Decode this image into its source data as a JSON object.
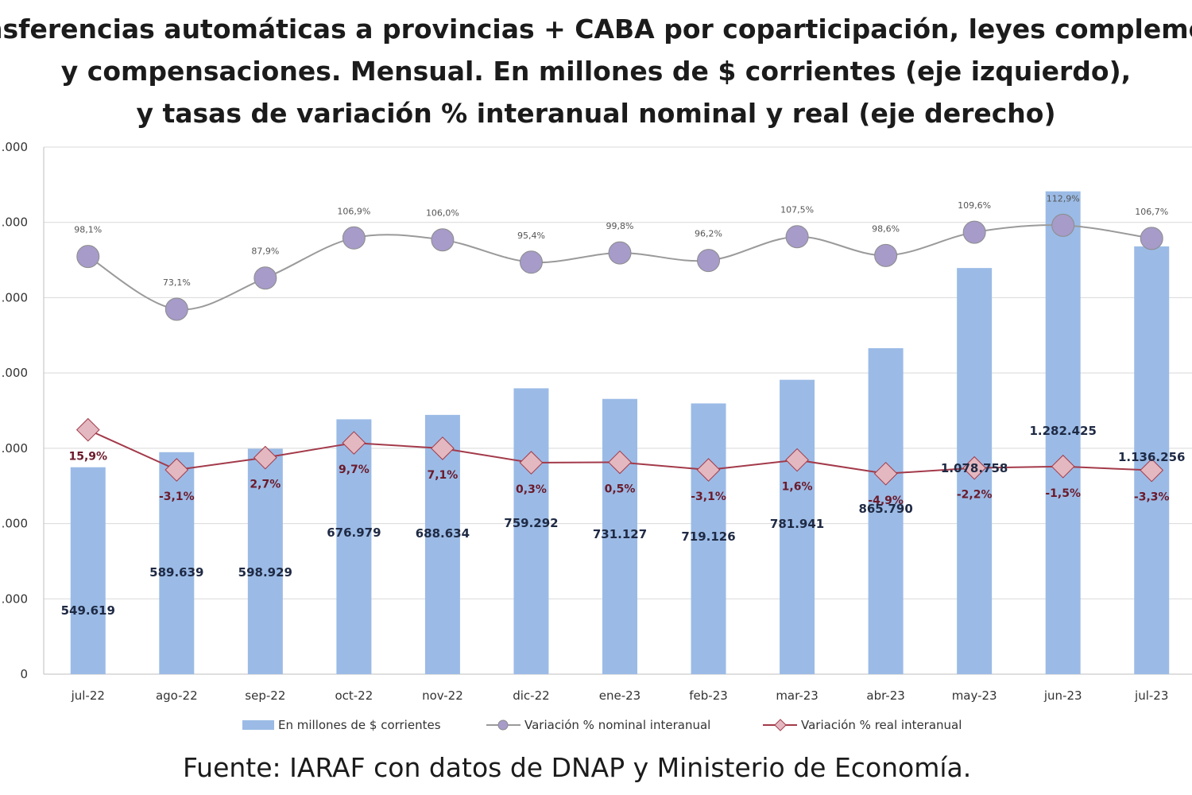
{
  "title_lines": [
    "nsferencias automáticas a provincias + CABA por coparticipación, leyes complement",
    "y compensaciones. Mensual. En millones de $ corrientes (eje izquierdo),",
    "y tasas de variación % interanual nominal y real (eje derecho)"
  ],
  "source": "Fuente: IARAF con datos de DNAP y Ministerio de Economía.",
  "colors": {
    "bar": "#9bbbe6",
    "nominal": "#a79bc9",
    "real": "#e3b8c0",
    "real_line": "#a33a4a",
    "grid": "#d9d9d9"
  },
  "chart_data": {
    "type": "bar",
    "categories": [
      "jul-22",
      "ago-22",
      "sep-22",
      "oct-22",
      "nov-22",
      "dic-22",
      "ene-23",
      "feb-23",
      "mar-23",
      "abr-23",
      "may-23",
      "jun-23",
      "jul-23"
    ],
    "left_axis": {
      "ticks": [
        0,
        200000,
        400000,
        600000,
        800000,
        1000000,
        1200000,
        1400000
      ],
      "tick_labels": [
        "0",
        ".000",
        ".000",
        ".000",
        ".000",
        ".000",
        ".000",
        ".000"
      ],
      "ylim": [
        0,
        1400000
      ]
    },
    "right_axis": {
      "ylim": [
        -100,
        150
      ]
    },
    "grid": true,
    "legend_position": "bottom",
    "series": [
      {
        "name": "En millones de $ corrientes",
        "kind": "bar",
        "axis": "left",
        "values": [
          549619,
          589639,
          598929,
          676979,
          688634,
          759292,
          731127,
          719126,
          781941,
          865790,
          1078758,
          1282425,
          1136256
        ],
        "labels": [
          "549.619",
          "589.639",
          "598.929",
          "676.979",
          "688.634",
          "759.292",
          "731.127",
          "719.126",
          "781.941",
          "865.790",
          "1.078.758",
          "1.282.425",
          "1.136.256"
        ]
      },
      {
        "name": "Variación % nominal interanual",
        "kind": "line",
        "axis": "right",
        "values": [
          98.1,
          73.1,
          87.9,
          106.9,
          106.0,
          95.4,
          99.8,
          96.2,
          107.5,
          98.6,
          109.6,
          112.9,
          106.7
        ],
        "labels": [
          "98,1%",
          "73,1%",
          "87,9%",
          "106,9%",
          "106,0%",
          "95,4%",
          "99,8%",
          "96,2%",
          "107,5%",
          "98,6%",
          "109,6%",
          "112,9%",
          "106,7%"
        ]
      },
      {
        "name": "Variación % real interanual",
        "kind": "line",
        "axis": "right",
        "values": [
          15.9,
          -3.1,
          2.7,
          9.7,
          7.1,
          0.3,
          0.5,
          -3.1,
          1.6,
          -4.9,
          -2.2,
          -1.5,
          -3.3
        ],
        "labels": [
          "15,9%",
          "-3,1%",
          "2,7%",
          "9,7%",
          "7,1%",
          "0,3%",
          "0,5%",
          "-3,1%",
          "1,6%",
          "-4,9%",
          "-2,2%",
          "-1,5%",
          "-3,3%"
        ]
      }
    ]
  }
}
